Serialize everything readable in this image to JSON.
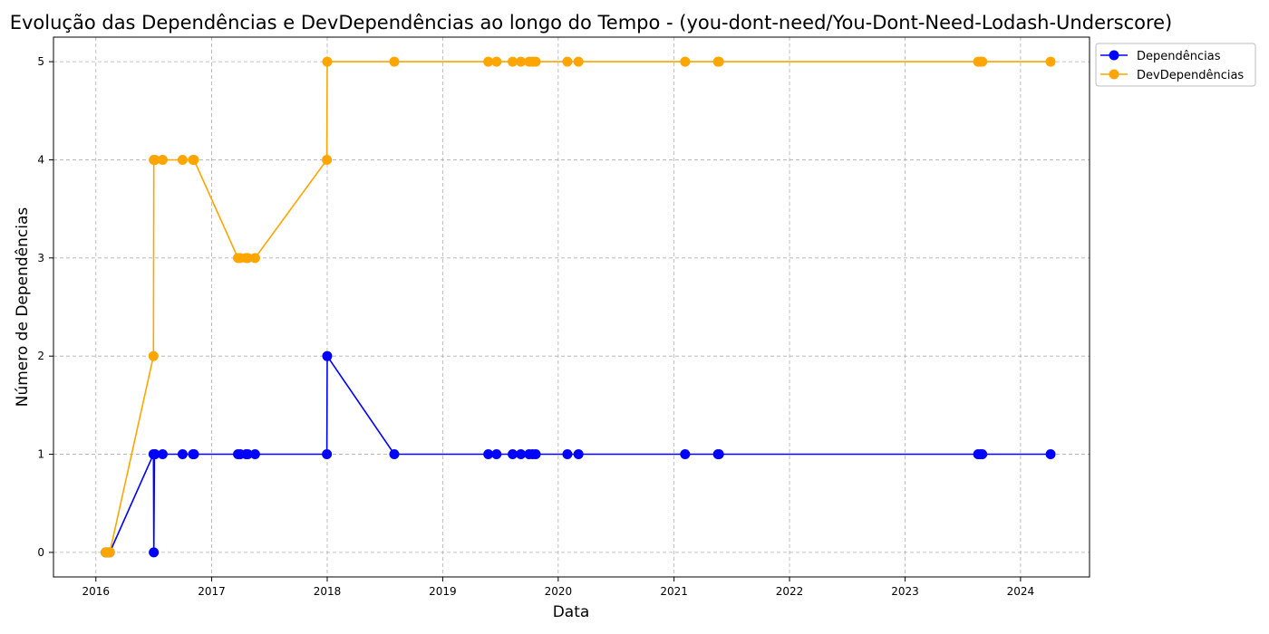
{
  "chart_data": {
    "type": "line",
    "title": "Evolução das Dependências e DevDependências ao longo do Tempo - (you-dont-need/You-Dont-Need-Lodash-Underscore)",
    "xlabel": "Data",
    "ylabel": "Número de Dependências",
    "x_ticks": [
      "2016",
      "2017",
      "2018",
      "2019",
      "2020",
      "2021",
      "2022",
      "2023",
      "2024"
    ],
    "y_ticks": [
      0,
      1,
      2,
      3,
      4,
      5
    ],
    "xlim": [
      "2015-08-20",
      "2024-08-06"
    ],
    "ylim": [
      -0.25,
      5.25
    ],
    "grid": true,
    "legend_position": "upper-right-outside",
    "x": [
      "2016-02-01",
      "2016-02-05",
      "2016-02-10",
      "2016-02-14",
      "2016-07-01",
      "2016-07-02",
      "2016-07-04",
      "2016-07-06",
      "2016-07-30",
      "2016-10-01",
      "2016-11-03",
      "2016-11-06",
      "2017-03-25",
      "2017-04-01",
      "2017-04-20",
      "2017-04-25",
      "2017-05-18",
      "2017-12-31",
      "2018-01-01",
      "2018-08-01",
      "2019-05-25",
      "2019-06-20",
      "2019-08-10",
      "2019-09-05",
      "2019-10-01",
      "2019-10-12",
      "2019-10-22",
      "2020-01-30",
      "2020-03-05",
      "2021-02-05",
      "2021-05-20",
      "2021-05-23",
      "2023-08-20",
      "2023-08-28",
      "2023-09-02",
      "2024-04-05"
    ],
    "series": [
      {
        "name": "Dependências",
        "color": "#0000ff",
        "values": [
          0,
          0,
          0,
          0,
          1,
          0,
          1,
          1,
          1,
          1,
          1,
          1,
          1,
          1,
          1,
          1,
          1,
          1,
          2,
          1,
          1,
          1,
          1,
          1,
          1,
          1,
          1,
          1,
          1,
          1,
          1,
          1,
          1,
          1,
          1,
          1
        ]
      },
      {
        "name": "DevDependências",
        "color": "#ffa500",
        "values": [
          0,
          0,
          0,
          0,
          2,
          4,
          4,
          4,
          4,
          4,
          4,
          4,
          3,
          3,
          3,
          3,
          3,
          4,
          5,
          5,
          5,
          5,
          5,
          5,
          5,
          5,
          5,
          5,
          5,
          5,
          5,
          5,
          5,
          5,
          5,
          5
        ]
      }
    ]
  }
}
